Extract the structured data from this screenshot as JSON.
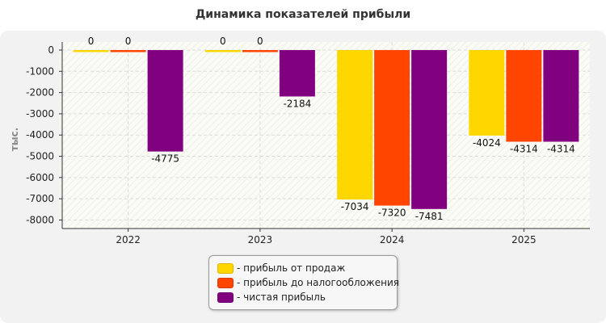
{
  "chart_data": {
    "type": "bar",
    "title": "Динамика показателей прибыли",
    "ylabel": "тыс.",
    "xlabel": "",
    "ylim": [
      -8400,
      0
    ],
    "yticks": [
      0,
      -1000,
      -2000,
      -3000,
      -4000,
      -5000,
      -6000,
      -7000,
      -8000
    ],
    "categories": [
      "2022",
      "2023",
      "2024",
      "2025"
    ],
    "series": [
      {
        "name": "прибыль от продаж",
        "color": "#ffd700",
        "values": [
          0,
          0,
          -7034,
          -4024
        ],
        "labels": [
          "0",
          "0",
          "-7034",
          "-4024"
        ]
      },
      {
        "name": "прибыль до налогообложения",
        "color": "#ff4500",
        "values": [
          0,
          0,
          -7320,
          -4314
        ],
        "labels": [
          "0",
          "0",
          "-7320",
          "-4314"
        ]
      },
      {
        "name": "чистая прибыль",
        "color": "#800080",
        "values": [
          -4775,
          -2184,
          -7481,
          -4314
        ],
        "labels": [
          "-4775",
          "-2184",
          "-7481",
          "-4314"
        ]
      }
    ],
    "grid": true,
    "legend_position": "bottom"
  },
  "legend": {
    "items": [
      {
        "label": "- прибыль от продаж",
        "color": "#ffd700"
      },
      {
        "label": "- прибыль до налогообложения",
        "color": "#ff4500"
      },
      {
        "label": "- чистая прибыль",
        "color": "#800080"
      }
    ]
  }
}
